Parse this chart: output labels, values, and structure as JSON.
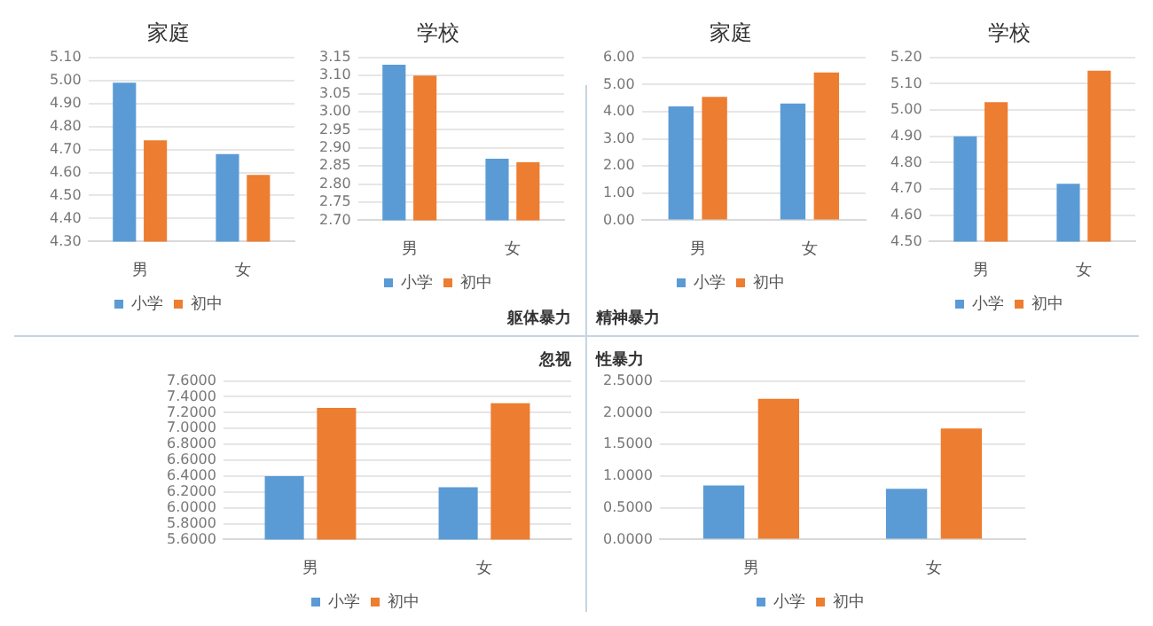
{
  "chart_data": [
    {
      "type": "bar",
      "title": "家庭",
      "categories": [
        "男",
        "女"
      ],
      "series": [
        {
          "name": "小学",
          "color": "#5b9bd5",
          "values": [
            4.99,
            4.68
          ]
        },
        {
          "name": "初中",
          "color": "#ed7d31",
          "values": [
            4.74,
            4.59
          ]
        }
      ],
      "ylim": [
        4.3,
        5.1
      ],
      "yticks": [
        {
          "value": 4.3,
          "label": "4.30"
        },
        {
          "value": 4.4,
          "label": "4.40"
        },
        {
          "value": 4.5,
          "label": "4.50"
        },
        {
          "value": 4.6,
          "label": "4.60"
        },
        {
          "value": 4.7,
          "label": "4.70"
        },
        {
          "value": 4.8,
          "label": "4.80"
        },
        {
          "value": 4.9,
          "label": "4.90"
        },
        {
          "value": 5.0,
          "label": "5.00"
        },
        {
          "value": 5.1,
          "label": "5.10"
        }
      ],
      "grid": "y",
      "legend": "bottom"
    },
    {
      "type": "bar",
      "title": "学校",
      "categories": [
        "男",
        "女"
      ],
      "series": [
        {
          "name": "小学",
          "color": "#5b9bd5",
          "values": [
            3.13,
            2.87
          ]
        },
        {
          "name": "初中",
          "color": "#ed7d31",
          "values": [
            3.1,
            2.86
          ]
        }
      ],
      "ylim": [
        2.7,
        3.15
      ],
      "yticks": [
        {
          "value": 2.7,
          "label": "2.70"
        },
        {
          "value": 2.75,
          "label": "2.75"
        },
        {
          "value": 2.8,
          "label": "2.80"
        },
        {
          "value": 2.85,
          "label": "2.85"
        },
        {
          "value": 2.9,
          "label": "2.90"
        },
        {
          "value": 2.95,
          "label": "2.95"
        },
        {
          "value": 3.0,
          "label": "3.00"
        },
        {
          "value": 3.05,
          "label": "3.05"
        },
        {
          "value": 3.1,
          "label": "3.10"
        },
        {
          "value": 3.15,
          "label": "3.15"
        }
      ],
      "grid": "y",
      "legend": "bottom",
      "annotations": [
        "躯体暴力"
      ]
    },
    {
      "type": "bar",
      "title": "家庭",
      "categories": [
        "男",
        "女"
      ],
      "series": [
        {
          "name": "小学",
          "color": "#5b9bd5",
          "values": [
            4.2,
            4.3
          ]
        },
        {
          "name": "初中",
          "color": "#ed7d31",
          "values": [
            4.55,
            5.45
          ]
        }
      ],
      "ylim": [
        0,
        6
      ],
      "yticks": [
        {
          "value": 0,
          "label": "0.00"
        },
        {
          "value": 1,
          "label": "1.00"
        },
        {
          "value": 2,
          "label": "2.00"
        },
        {
          "value": 3,
          "label": "3.00"
        },
        {
          "value": 4,
          "label": "4.00"
        },
        {
          "value": 5,
          "label": "5.00"
        },
        {
          "value": 6,
          "label": "6.00"
        }
      ],
      "grid": "y",
      "legend": "bottom",
      "annotations": [
        "精神暴力"
      ]
    },
    {
      "type": "bar",
      "title": "学校",
      "categories": [
        "男",
        "女"
      ],
      "series": [
        {
          "name": "小学",
          "color": "#5b9bd5",
          "values": [
            4.9,
            4.72
          ]
        },
        {
          "name": "初中",
          "color": "#ed7d31",
          "values": [
            5.03,
            5.15
          ]
        }
      ],
      "ylim": [
        4.5,
        5.2
      ],
      "yticks": [
        {
          "value": 4.5,
          "label": "4.50"
        },
        {
          "value": 4.6,
          "label": "4.60"
        },
        {
          "value": 4.7,
          "label": "4.70"
        },
        {
          "value": 4.8,
          "label": "4.80"
        },
        {
          "value": 4.9,
          "label": "4.90"
        },
        {
          "value": 5.0,
          "label": "5.00"
        },
        {
          "value": 5.1,
          "label": "5.10"
        },
        {
          "value": 5.2,
          "label": "5.20"
        }
      ],
      "grid": "y",
      "legend": "bottom"
    },
    {
      "type": "bar",
      "title": "忽视",
      "categories": [
        "男",
        "女"
      ],
      "series": [
        {
          "name": "小学",
          "color": "#5b9bd5",
          "values": [
            6.4,
            6.26
          ]
        },
        {
          "name": "初中",
          "color": "#ed7d31",
          "values": [
            7.26,
            7.32
          ]
        }
      ],
      "ylim": [
        5.6,
        7.6
      ],
      "yticks": [
        {
          "value": 5.6,
          "label": "5.6000"
        },
        {
          "value": 5.8,
          "label": "5.8000"
        },
        {
          "value": 6.0,
          "label": "6.0000"
        },
        {
          "value": 6.2,
          "label": "6.2000"
        },
        {
          "value": 6.4,
          "label": "6.4000"
        },
        {
          "value": 6.6,
          "label": "6.6000"
        },
        {
          "value": 6.8,
          "label": "6.8000"
        },
        {
          "value": 7.0,
          "label": "7.0000"
        },
        {
          "value": 7.2,
          "label": "7.2000"
        },
        {
          "value": 7.4,
          "label": "7.4000"
        },
        {
          "value": 7.6,
          "label": "7.6000"
        }
      ],
      "grid": "y",
      "legend": "bottom"
    },
    {
      "type": "bar",
      "title": "性暴力",
      "categories": [
        "男",
        "女"
      ],
      "series": [
        {
          "name": "小学",
          "color": "#5b9bd5",
          "values": [
            0.85,
            0.8
          ]
        },
        {
          "name": "初中",
          "color": "#ed7d31",
          "values": [
            2.22,
            1.75
          ]
        }
      ],
      "ylim": [
        0,
        2.5
      ],
      "yticks": [
        {
          "value": 0,
          "label": "0.0000"
        },
        {
          "value": 0.5,
          "label": "0.5000"
        },
        {
          "value": 1,
          "label": "1.0000"
        },
        {
          "value": 1.5,
          "label": "1.5000"
        },
        {
          "value": 2,
          "label": "2.0000"
        },
        {
          "value": 2.5,
          "label": "2.5000"
        }
      ],
      "grid": "y",
      "legend": "bottom"
    }
  ]
}
